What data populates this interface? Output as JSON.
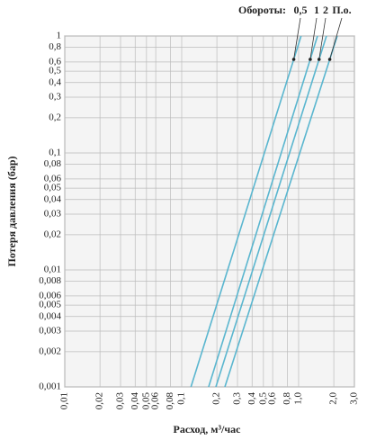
{
  "chart_data": {
    "type": "line",
    "legend_title": "Обороты:",
    "x_label": "Расход, м³/час",
    "y_label": "Потеря давления (бар)",
    "log_x": true,
    "log_y": true,
    "grid": true,
    "xlim": [
      0.01,
      3.0
    ],
    "ylim": [
      0.001,
      1
    ],
    "xticks": [
      {
        "value": 0.01,
        "label": "0,01"
      },
      {
        "value": 0.02,
        "label": "0,02"
      },
      {
        "value": 0.03,
        "label": "0,03"
      },
      {
        "value": 0.04,
        "label": "0,04"
      },
      {
        "value": 0.05,
        "label": "0,05"
      },
      {
        "value": 0.06,
        "label": "0,06"
      },
      {
        "value": 0.08,
        "label": "0,08"
      },
      {
        "value": 0.1,
        "label": "0,1"
      },
      {
        "value": 0.2,
        "label": "0,2"
      },
      {
        "value": 0.3,
        "label": "0,3"
      },
      {
        "value": 0.4,
        "label": "0,4"
      },
      {
        "value": 0.5,
        "label": "0,5"
      },
      {
        "value": 0.6,
        "label": "0,6"
      },
      {
        "value": 0.8,
        "label": "0,8"
      },
      {
        "value": 1.0,
        "label": "1,0"
      },
      {
        "value": 2.0,
        "label": "2,0"
      },
      {
        "value": 3.0,
        "label": "3,0"
      }
    ],
    "yticks": [
      {
        "value": 0.001,
        "label": "0,001"
      },
      {
        "value": 0.002,
        "label": "0,002"
      },
      {
        "value": 0.003,
        "label": "0,003"
      },
      {
        "value": 0.004,
        "label": "0,004"
      },
      {
        "value": 0.005,
        "label": "0,005"
      },
      {
        "value": 0.006,
        "label": "0,006"
      },
      {
        "value": 0.008,
        "label": "0,008"
      },
      {
        "value": 0.01,
        "label": "0,01"
      },
      {
        "value": 0.02,
        "label": "0,02"
      },
      {
        "value": 0.03,
        "label": "0,03"
      },
      {
        "value": 0.04,
        "label": "0,04"
      },
      {
        "value": 0.05,
        "label": "0,05"
      },
      {
        "value": 0.06,
        "label": "0,06"
      },
      {
        "value": 0.08,
        "label": "0,08"
      },
      {
        "value": 0.1,
        "label": "0,1"
      },
      {
        "value": 0.2,
        "label": "0,2"
      },
      {
        "value": 0.3,
        "label": "0,3"
      },
      {
        "value": 0.4,
        "label": "0,4"
      },
      {
        "value": 0.5,
        "label": "0,5"
      },
      {
        "value": 0.6,
        "label": "0,6"
      },
      {
        "value": 0.8,
        "label": "0,8"
      },
      1
    ],
    "series": [
      {
        "name": "0,5",
        "color": "#5ab6cf",
        "x": [
          0.12,
          1.05
        ],
        "values": [
          0.001,
          1
        ]
      },
      {
        "name": "1",
        "color": "#5ab6cf",
        "x": [
          0.17,
          1.45
        ],
        "values": [
          0.001,
          1
        ]
      },
      {
        "name": "2",
        "color": "#5ab6cf",
        "x": [
          0.196,
          1.73
        ],
        "values": [
          0.001,
          1
        ]
      },
      {
        "name": "П.о.",
        "color": "#5ab6cf",
        "x": [
          0.234,
          2.14
        ],
        "values": [
          0.001,
          1
        ]
      }
    ]
  }
}
